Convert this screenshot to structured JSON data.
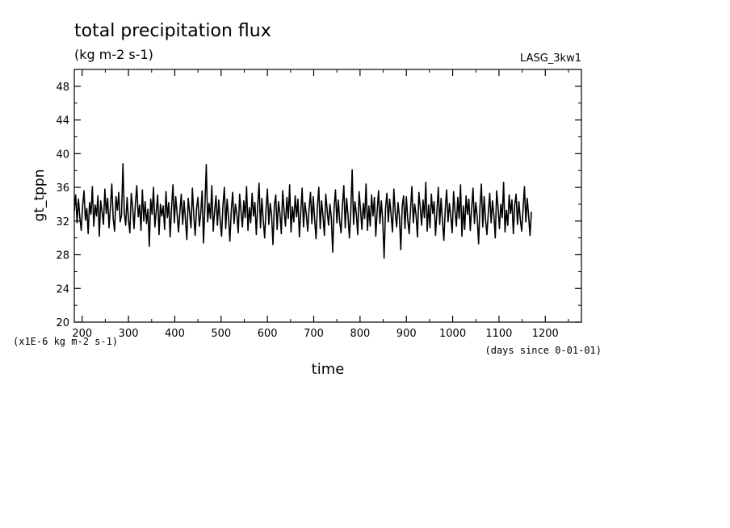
{
  "chart_data": {
    "type": "line",
    "title": "total precipitation flux",
    "subtitle": "(kg m-2 s-1)",
    "run_label": "LASG_3kw1",
    "xlabel": "time",
    "ylabel": "gt_tppn",
    "x_unit": "(days since 0-01-01)",
    "y_scale_note": "(x1E-6 kg m-2 s-1)",
    "xlim": [
      183,
      1278
    ],
    "ylim": [
      20,
      50
    ],
    "x_ticks": [
      "200",
      "300",
      "400",
      "500",
      "600",
      "700",
      "800",
      "900",
      "1000",
      "1100",
      "1200"
    ],
    "y_ticks": [
      "20",
      "24",
      "28",
      "32",
      "36",
      "40",
      "44",
      "48"
    ],
    "grid": false,
    "series": [
      {
        "x_start": 183,
        "x_step": 3,
        "values": [
          33.2,
          35.1,
          31.8,
          34.6,
          32.4,
          30.9,
          33.8,
          35.6,
          32.1,
          33.5,
          30.5,
          34.2,
          32.8,
          36.1,
          31.4,
          33.9,
          32.6,
          35.0,
          30.2,
          34.4,
          33.1,
          31.6,
          35.8,
          32.9,
          34.7,
          31.2,
          33.6,
          36.4,
          32.3,
          30.8,
          34.9,
          33.3,
          35.4,
          31.9,
          32.7,
          38.8,
          33.0,
          31.5,
          34.8,
          32.2,
          30.6,
          35.3,
          33.7,
          31.1,
          34.1,
          36.2,
          32.5,
          33.9,
          30.9,
          35.7,
          32.0,
          34.3,
          31.7,
          33.4,
          29.0,
          34.6,
          32.8,
          36.0,
          31.3,
          33.2,
          35.1,
          30.4,
          34.0,
          32.6,
          33.8,
          31.0,
          35.5,
          32.4,
          34.2,
          30.1,
          33.6,
          36.3,
          31.8,
          34.9,
          32.9,
          30.7,
          33.1,
          35.2,
          31.6,
          34.4,
          32.2,
          29.8,
          34.7,
          33.0,
          31.2,
          35.9,
          32.7,
          30.3,
          33.5,
          34.8,
          31.4,
          32.9,
          35.6,
          29.4,
          33.7,
          38.7,
          31.9,
          34.1,
          32.3,
          36.2,
          30.8,
          33.2,
          35.0,
          31.5,
          34.5,
          32.0,
          30.2,
          33.9,
          36.0,
          31.1,
          34.6,
          32.5,
          29.6,
          33.3,
          35.4,
          31.7,
          34.0,
          32.8,
          30.6,
          35.2,
          33.1,
          31.3,
          34.4,
          32.4,
          36.1,
          30.9,
          33.6,
          31.8,
          35.3,
          32.6,
          34.2,
          30.4,
          33.8,
          36.5,
          31.2,
          34.7,
          32.1,
          30.0,
          33.4,
          35.8,
          31.6,
          34.1,
          32.7,
          29.2,
          33.9,
          35.1,
          31.0,
          34.3,
          32.9,
          30.5,
          35.6,
          33.2,
          31.4,
          34.8,
          32.3,
          36.3,
          30.7,
          33.7,
          31.9,
          35.0,
          32.5,
          34.6,
          30.1,
          33.0,
          35.9,
          31.3,
          34.2,
          32.8,
          30.8,
          33.5,
          35.4,
          31.7,
          34.9,
          32.2,
          29.9,
          33.8,
          36.0,
          31.1,
          34.4,
          32.6,
          30.3,
          35.2,
          33.3,
          31.5,
          34.0,
          32.4,
          28.3,
          33.6,
          35.7,
          31.8,
          34.5,
          32.0,
          30.6,
          33.9,
          36.2,
          31.2,
          34.7,
          32.7,
          30.0,
          33.1,
          38.1,
          31.6,
          34.3,
          32.9,
          30.4,
          35.5,
          33.4,
          31.0,
          34.1,
          32.3,
          36.4,
          30.9,
          33.8,
          31.4,
          35.1,
          32.6,
          34.8,
          30.2,
          33.2,
          35.6,
          31.7,
          34.4,
          32.1,
          27.6,
          33.5,
          35.3,
          31.9,
          34.6,
          32.8,
          30.7,
          35.8,
          33.0,
          31.3,
          34.2,
          32.5,
          28.6,
          33.7,
          35.0,
          31.1,
          34.9,
          32.2,
          30.5,
          33.3,
          36.1,
          31.8,
          34.0,
          32.7,
          30.1,
          35.4,
          33.6,
          31.5,
          34.5,
          32.4,
          36.6,
          30.8,
          33.9,
          31.2,
          35.2,
          32.9,
          34.3,
          30.3,
          33.1,
          36.0,
          31.6,
          34.7,
          32.0,
          29.7,
          33.4,
          35.7,
          31.9,
          34.1,
          32.6,
          30.6,
          35.5,
          33.2,
          31.4,
          34.8,
          32.3,
          36.3,
          30.2,
          33.8,
          31.0,
          35.0,
          32.8,
          34.6,
          30.9,
          33.5,
          35.9,
          31.7,
          34.2,
          32.5,
          29.3,
          33.7,
          36.4,
          31.3,
          34.9,
          32.1,
          30.4,
          33.0,
          35.3,
          31.8,
          34.4,
          32.7,
          30.0,
          35.6,
          33.6,
          31.1,
          34.0,
          32.4,
          36.6,
          30.7,
          33.3,
          31.5,
          35.1,
          32.9,
          34.5,
          30.5,
          33.9,
          35.2,
          31.6,
          34.3,
          32.2,
          30.8,
          33.4,
          36.1,
          31.9,
          34.7,
          32.6,
          30.3,
          33.1
        ]
      }
    ]
  }
}
